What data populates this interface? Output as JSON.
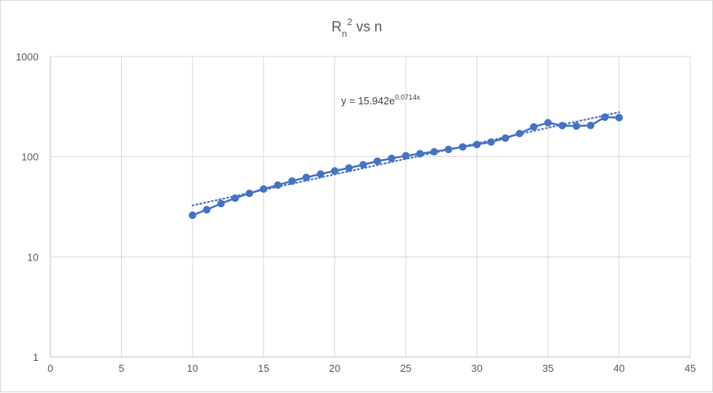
{
  "chart_data": {
    "type": "scatter",
    "title": {
      "main": "R",
      "sub": "n",
      "sup": "2",
      "rest": " vs n"
    },
    "xlabel": "",
    "ylabel": "",
    "xlim": [
      0,
      45
    ],
    "ylim": [
      1,
      1000
    ],
    "y_scale": "log",
    "grid": true,
    "x_ticks": [
      0,
      5,
      10,
      15,
      20,
      25,
      30,
      35,
      40,
      45
    ],
    "y_ticks": [
      1,
      10,
      100,
      1000
    ],
    "series": [
      {
        "color": "#4472c4",
        "x": [
          10,
          11,
          12,
          13,
          14,
          15,
          16,
          17,
          18,
          19,
          20,
          21,
          22,
          23,
          24,
          25,
          26,
          27,
          28,
          29,
          30,
          31,
          32,
          33,
          34,
          35,
          36,
          37,
          38,
          39,
          40
        ],
        "y": [
          26,
          29.5,
          34,
          38.5,
          43,
          47.5,
          52,
          57,
          62,
          67,
          72,
          77,
          83,
          90,
          96,
          102,
          107,
          112,
          118,
          125,
          132,
          140,
          153,
          170,
          198,
          218,
          204,
          202,
          205,
          248,
          245
        ]
      }
    ],
    "trendline": {
      "type": "exponential",
      "a": 15.942,
      "b": 0.0714,
      "x_range": [
        10,
        40
      ],
      "color": "#4472c4",
      "label_base": "y = 15.942e",
      "label_exp": "0.0714x"
    }
  }
}
